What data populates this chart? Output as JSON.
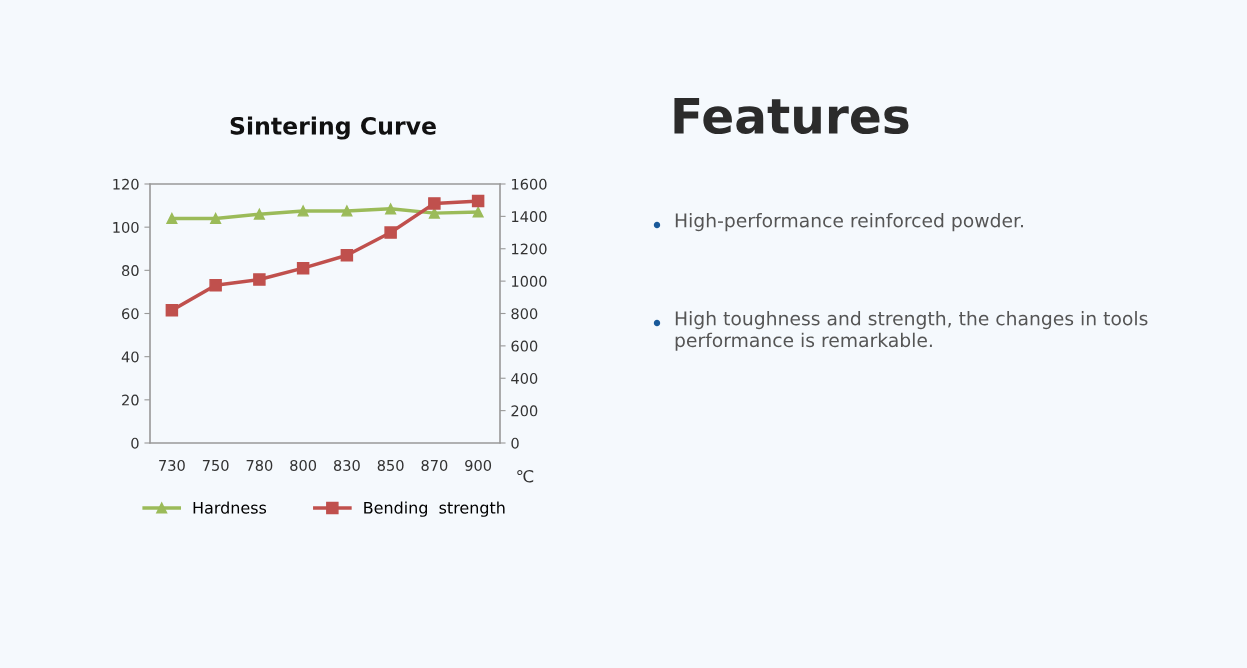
{
  "chart_data": [
    {
      "type": "line",
      "title": "Sintering Curve",
      "xlabel": "℃",
      "categories": [
        "730",
        "750",
        "780",
        "800",
        "830",
        "850",
        "870",
        "900"
      ],
      "series": [
        {
          "name": "Hardness",
          "color": "#9bbb59",
          "marker": "triangle",
          "values": [
            104,
            104,
            106,
            107.5,
            107.5,
            108.5,
            106.5,
            107
          ]
        },
        {
          "name": "Bending  strength",
          "color": "#c0504d",
          "marker": "square",
          "axis": "y2",
          "values": [
            820,
            975,
            1010,
            1080,
            1160,
            1300,
            1480,
            1495
          ]
        }
      ],
      "ylim": [
        0,
        120
      ],
      "yticks": [
        0,
        20,
        40,
        60,
        80,
        100,
        120
      ],
      "y2lim": [
        0,
        1600
      ],
      "y2ticks": [
        0,
        200,
        400,
        600,
        800,
        1000,
        1200,
        1400,
        1600
      ],
      "grid": false,
      "legend": "bottom",
      "line_style": "solid"
    },
    {
      "type": "other",
      "title": "Features",
      "annotations": [
        "High-performance reinforced powder.",
        "High toughness and strength, the changes in tools\nperformance is remarkable."
      ]
    }
  ]
}
